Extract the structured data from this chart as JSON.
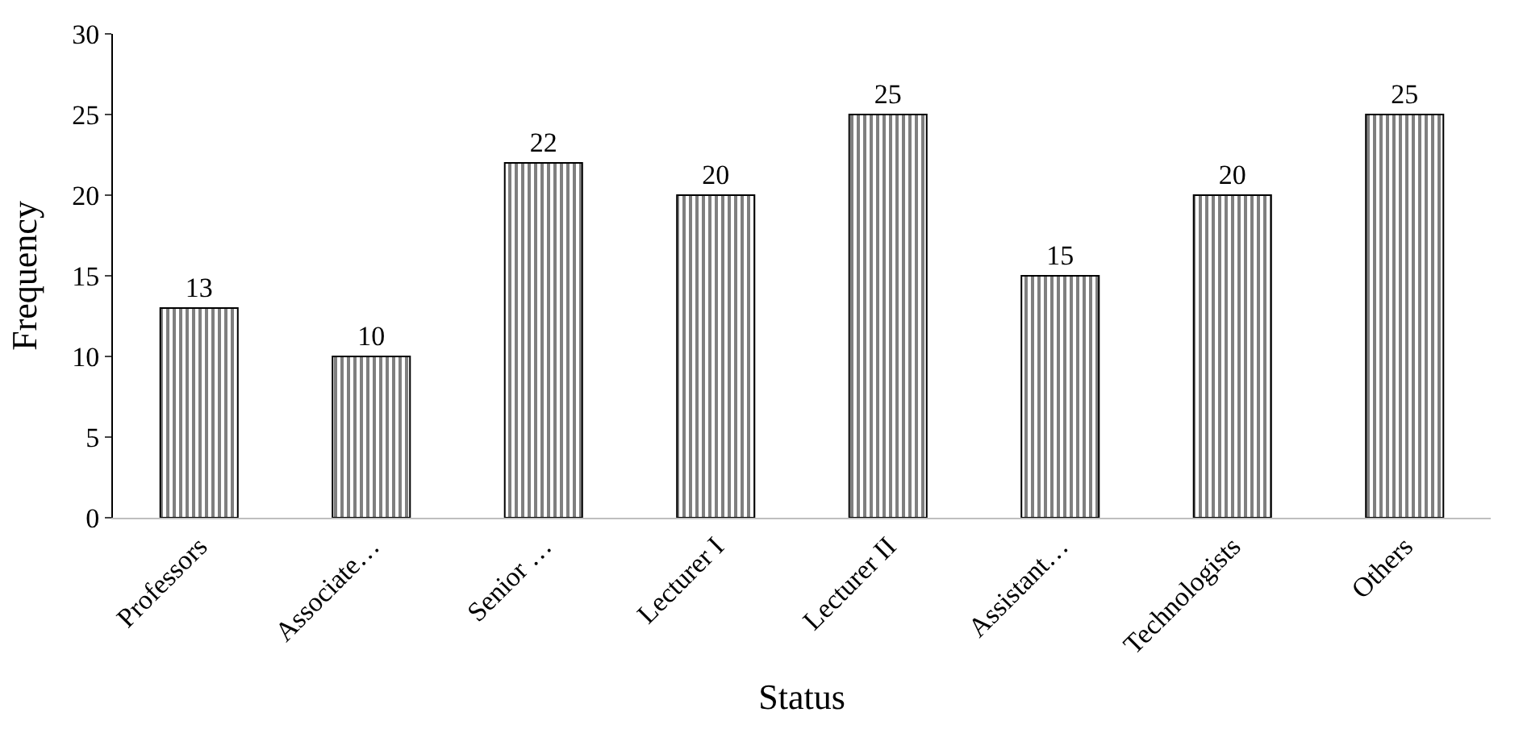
{
  "chart_data": {
    "type": "bar",
    "xlabel": "Status",
    "ylabel": "Frequency",
    "categories": [
      "Professors",
      "Associate…",
      "Senior …",
      "Lecturer I",
      "Lecturer II",
      "Assistant…",
      "Technologists",
      "Others"
    ],
    "values": [
      13,
      10,
      22,
      20,
      25,
      15,
      20,
      25
    ],
    "color": "#000000",
    "ylim": [
      0,
      30
    ],
    "yticks": [
      0,
      5,
      10,
      15,
      20,
      25,
      30
    ],
    "legend": false,
    "data_labels": true
  }
}
